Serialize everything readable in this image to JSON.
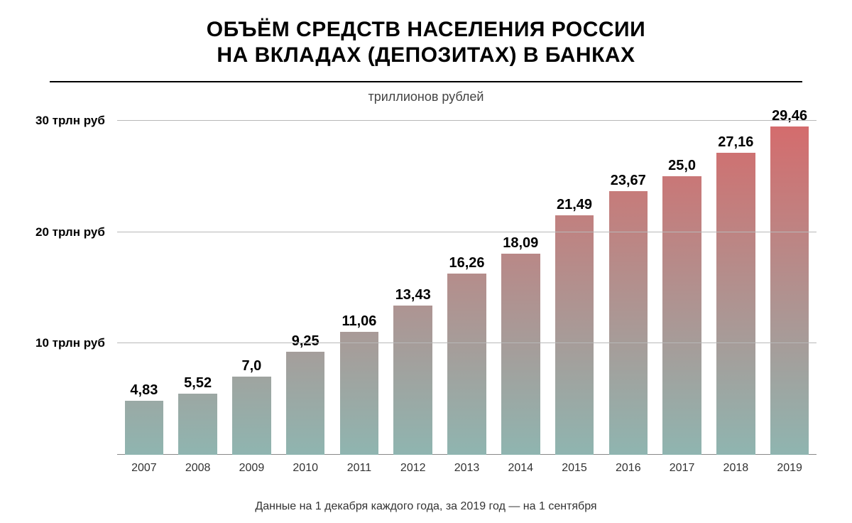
{
  "title_line1": "ОБЪЁМ СРЕДСТВ НАСЕЛЕНИЯ РОССИИ",
  "title_line2": "НА ВКЛАДАХ (ДЕПОЗИТАХ) В БАНКАХ",
  "title_fontsize": 30,
  "title_color": "#000000",
  "subtitle": "триллионов рублей",
  "subtitle_fontsize": 18,
  "footnote": "Данные на 1 декабря каждого года, за 2019 год — на 1 сентября",
  "footnote_fontsize": 16,
  "chart": {
    "type": "bar",
    "background_color": "#ffffff",
    "grid_color": "#b8b8b8",
    "ylim": [
      0,
      30
    ],
    "yticks": [
      {
        "value": 10,
        "label": "10 трлн руб"
      },
      {
        "value": 20,
        "label": "20 трлн руб"
      },
      {
        "value": 30,
        "label": "30 трлн руб"
      }
    ],
    "ylabel_fontsize": 17,
    "bar_width_ratio": 0.72,
    "value_label_fontsize": 20,
    "xlabel_fontsize": 16,
    "bar_gradient_top": "#d56b6c",
    "bar_gradient_bottom": "#8fb5b0",
    "categories": [
      "2007",
      "2008",
      "2009",
      "2010",
      "2011",
      "2012",
      "2013",
      "2014",
      "2015",
      "2016",
      "2017",
      "2018",
      "2019"
    ],
    "values": [
      4.83,
      5.52,
      7.0,
      9.25,
      11.06,
      13.43,
      16.26,
      18.09,
      21.49,
      23.67,
      25.0,
      27.16,
      29.46
    ],
    "value_labels": [
      "4,83",
      "5,52",
      "7,0",
      "9,25",
      "11,06",
      "13,43",
      "16,26",
      "18,09",
      "21,49",
      "23,67",
      "25,0",
      "27,16",
      "29,46"
    ]
  }
}
